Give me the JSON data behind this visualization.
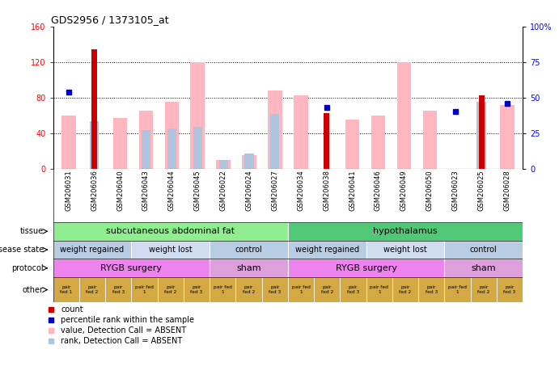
{
  "title": "GDS2956 / 1373105_at",
  "samples": [
    "GSM206031",
    "GSM206036",
    "GSM206040",
    "GSM206043",
    "GSM206044",
    "GSM206045",
    "GSM206022",
    "GSM206024",
    "GSM206027",
    "GSM206034",
    "GSM206038",
    "GSM206041",
    "GSM206046",
    "GSM206049",
    "GSM206050",
    "GSM206023",
    "GSM206025",
    "GSM206028"
  ],
  "count": [
    0,
    135,
    0,
    0,
    0,
    0,
    0,
    0,
    0,
    0,
    63,
    0,
    0,
    0,
    0,
    0,
    83,
    0
  ],
  "percentile": [
    54,
    0,
    0,
    0,
    0,
    0,
    0,
    0,
    0,
    0,
    43,
    0,
    0,
    0,
    0,
    40,
    0,
    46
  ],
  "absent_value": [
    60,
    0,
    57,
    65,
    75,
    120,
    10,
    15,
    88,
    83,
    0,
    55,
    60,
    120,
    65,
    0,
    0,
    72
  ],
  "absent_rank": [
    0,
    53,
    0,
    43,
    45,
    47,
    10,
    17,
    62,
    0,
    0,
    0,
    0,
    0,
    0,
    0,
    75,
    0
  ],
  "ylim_left": [
    0,
    160
  ],
  "ylim_right": [
    0,
    100
  ],
  "yticks_left": [
    0,
    40,
    80,
    120,
    160
  ],
  "yticks_right": [
    0,
    25,
    50,
    75,
    100
  ],
  "ytick_labels_right": [
    "0",
    "25",
    "50",
    "75",
    "100%"
  ],
  "tissue_groups": [
    {
      "label": "subcutaneous abdominal fat",
      "start": 0,
      "end": 9,
      "color": "#90EE90"
    },
    {
      "label": "hypothalamus",
      "start": 9,
      "end": 18,
      "color": "#50C878"
    }
  ],
  "disease_state_groups": [
    {
      "label": "weight regained",
      "start": 0,
      "end": 3,
      "color": "#B8CCE4"
    },
    {
      "label": "weight lost",
      "start": 3,
      "end": 6,
      "color": "#D0DCF0"
    },
    {
      "label": "control",
      "start": 6,
      "end": 9,
      "color": "#B8CCE4"
    },
    {
      "label": "weight regained",
      "start": 9,
      "end": 12,
      "color": "#B8CCE4"
    },
    {
      "label": "weight lost",
      "start": 12,
      "end": 15,
      "color": "#D0DCF0"
    },
    {
      "label": "control",
      "start": 15,
      "end": 18,
      "color": "#B8CCE4"
    }
  ],
  "protocol_groups": [
    {
      "label": "RYGB surgery",
      "start": 0,
      "end": 6,
      "color": "#EE82EE"
    },
    {
      "label": "sham",
      "start": 6,
      "end": 9,
      "color": "#DDA0DD"
    },
    {
      "label": "RYGB surgery",
      "start": 9,
      "end": 15,
      "color": "#EE82EE"
    },
    {
      "label": "sham",
      "start": 15,
      "end": 18,
      "color": "#DDA0DD"
    }
  ],
  "other_labels": [
    "pair\nfed 1",
    "pair\nfed 2",
    "pair\nfed 3",
    "pair fed\n1",
    "pair\nfed 2",
    "pair\nfed 3",
    "pair fed\n1",
    "pair\nfed 2",
    "pair\nfed 3",
    "pair fed\n1",
    "pair\nfed 2",
    "pair\nfed 3",
    "pair fed\n1",
    "pair\nfed 2",
    "pair\nfed 3",
    "pair fed\n1",
    "pair\nfed 2",
    "pair\nfed 3"
  ],
  "other_color": "#D4A843",
  "count_color": "#CC0000",
  "percentile_color": "#0000CC",
  "absent_value_color": "#FFB6C1",
  "absent_rank_color": "#B0C4DE",
  "legend_items": [
    {
      "label": "count",
      "color": "#CC0000",
      "marker": "s"
    },
    {
      "label": "percentile rank within the sample",
      "color": "#0000CC",
      "marker": "s"
    },
    {
      "label": "value, Detection Call = ABSENT",
      "color": "#FFB6C1",
      "marker": "s"
    },
    {
      "label": "rank, Detection Call = ABSENT",
      "color": "#B0C4DE",
      "marker": "s"
    }
  ]
}
